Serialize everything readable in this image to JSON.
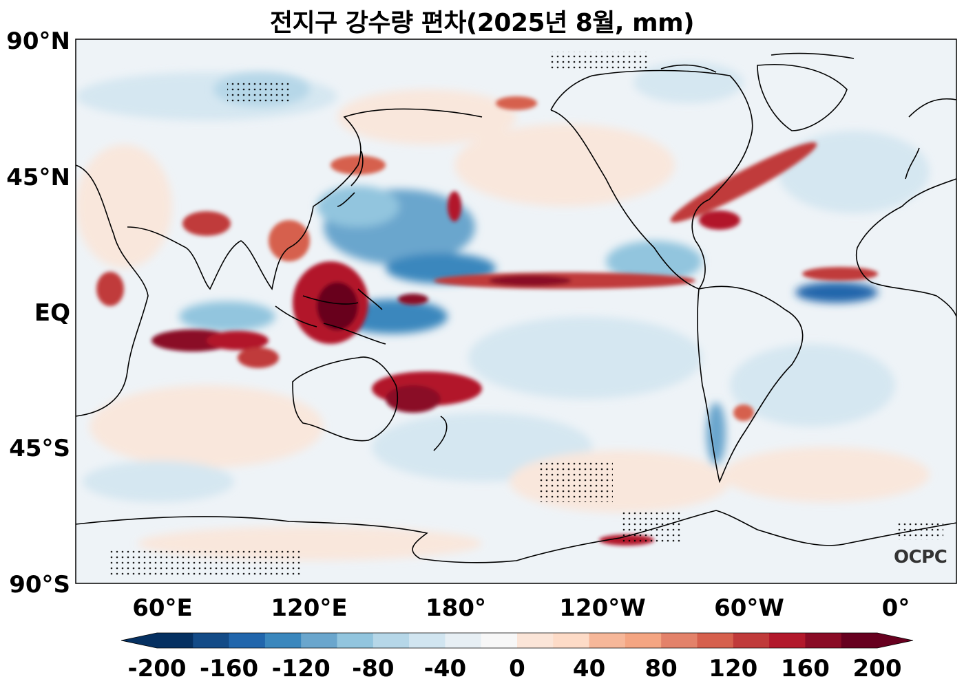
{
  "title": "전지구 강수량 편차(2025년 8월, mm)",
  "logo_text": "OCPC",
  "lat_labels": [
    "90°N",
    "45°N",
    "EQ",
    "45°S",
    "90°S"
  ],
  "lon_labels": [
    "60°E",
    "120°E",
    "180°",
    "120°W",
    "60°W",
    "0°"
  ],
  "colorbar": {
    "tick_labels": [
      "-200",
      "-160",
      "-120",
      "-80",
      "-40",
      "0",
      "40",
      "80",
      "120",
      "160",
      "200"
    ],
    "colors": [
      "#053061",
      "#134b87",
      "#2166ac",
      "#3a87bd",
      "#6aa6cd",
      "#92c5de",
      "#b6d7e8",
      "#d1e5f0",
      "#e7eff4",
      "#f7f7f7",
      "#fbe5d8",
      "#fddbc7",
      "#f6b799",
      "#f4a582",
      "#e3826a",
      "#d6604d",
      "#c03a3a",
      "#b2182b",
      "#8a0b25",
      "#67001f"
    ],
    "extend": "both"
  },
  "map": {
    "projection": "equirectangular",
    "lon_range": [
      25,
      385
    ],
    "lat_range": [
      -90,
      90
    ],
    "background_color": "#eef3f7",
    "hatching": "stipple dots mark significant anomalies"
  }
}
